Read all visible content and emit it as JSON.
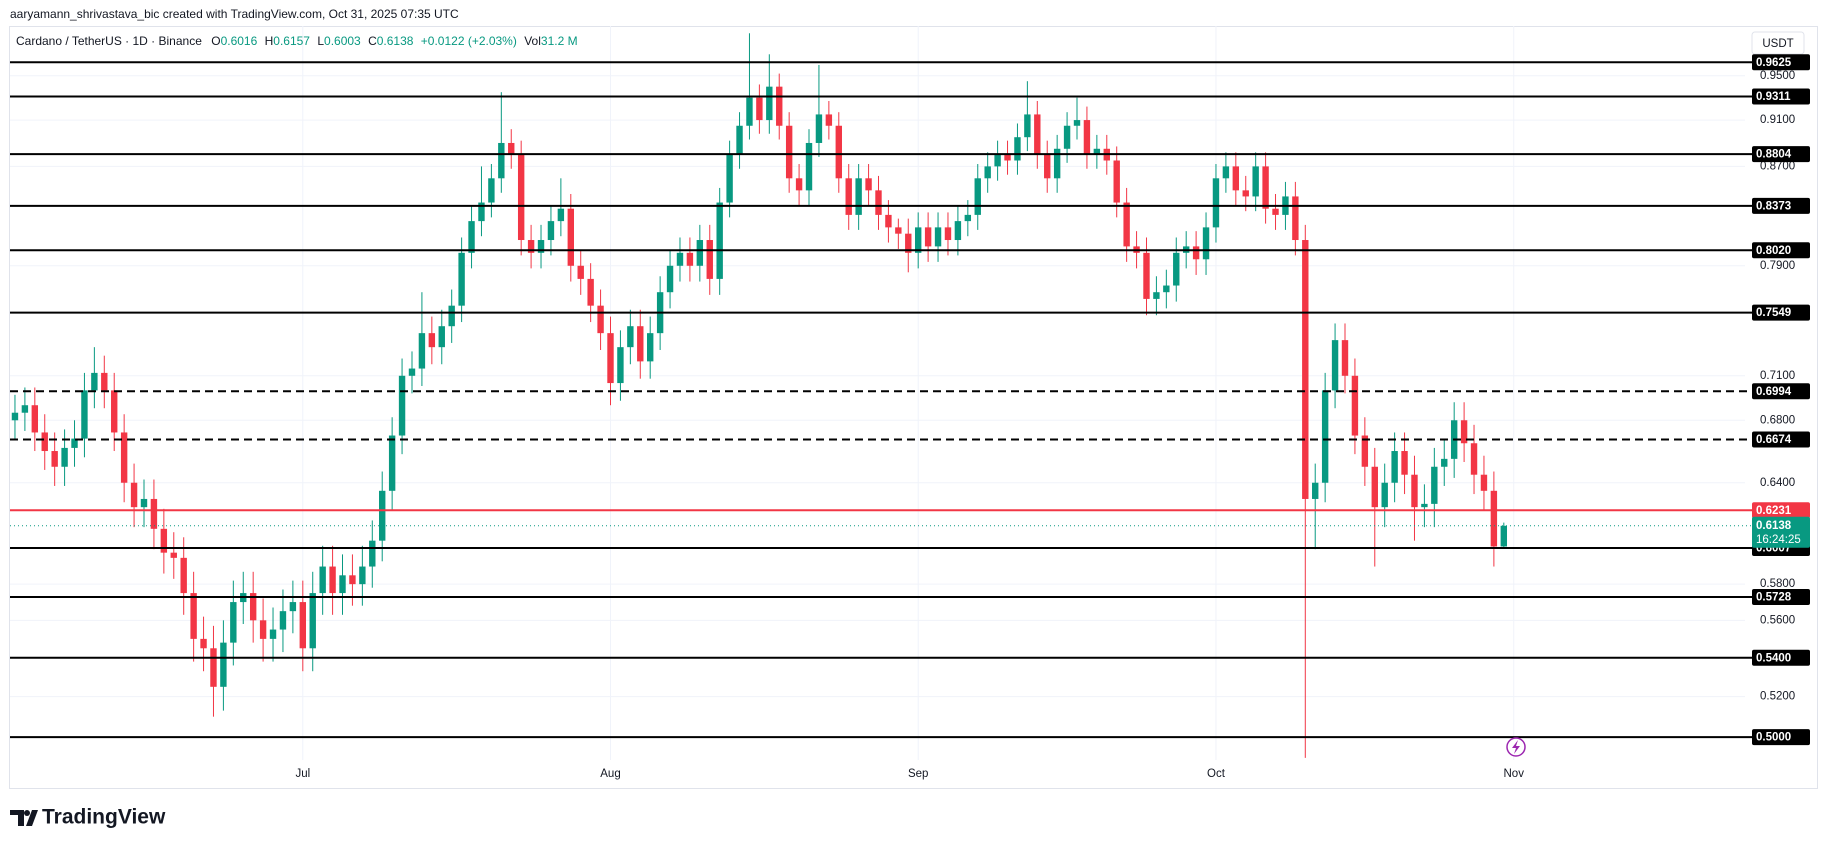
{
  "header": {
    "attribution": "aaryamann_shrivastava_bic created with TradingView.com, Oct 31, 2025 07:35 UTC",
    "symbol": "Cardano / TetherUS · 1D · Binance",
    "open_label": "O",
    "high_label": "H",
    "low_label": "L",
    "close_label": "C",
    "change": "+0.0122 (+2.03%)",
    "volume_label": "Vol",
    "volume": "31.2 M"
  },
  "currency": "USDT",
  "countdown": "16:24:25",
  "brand": "TradingView",
  "chart_data": {
    "type": "candlestick",
    "up_color": "#089981",
    "down_color": "#f23645",
    "log_scale": true,
    "grid": true,
    "ylim": [
      0.489,
      0.997
    ],
    "yticks": [
      {
        "value": 0.95,
        "label": "0.9500"
      },
      {
        "value": 0.91,
        "label": "0.9100"
      },
      {
        "value": 0.87,
        "label": "0.8700"
      },
      {
        "value": 0.79,
        "label": "0.7900"
      },
      {
        "value": 0.71,
        "label": "0.7100"
      },
      {
        "value": 0.68,
        "label": "0.6800"
      },
      {
        "value": 0.64,
        "label": "0.6400"
      },
      {
        "value": 0.58,
        "label": "0.5800"
      },
      {
        "value": 0.56,
        "label": "0.5600"
      },
      {
        "value": 0.52,
        "label": "0.5200"
      }
    ],
    "xlim": [
      -0.5,
      174.3
    ],
    "xticks": [
      {
        "value": 29,
        "label": "Jul"
      },
      {
        "value": 60,
        "label": "Aug"
      },
      {
        "value": 91,
        "label": "Sep"
      },
      {
        "value": 121,
        "label": "Oct"
      },
      {
        "value": 151,
        "label": "Nov"
      }
    ],
    "levels": [
      {
        "value": 0.9625,
        "label": "0.9625",
        "style": "solid",
        "color": "#000000"
      },
      {
        "value": 0.9311,
        "label": "0.9311",
        "style": "solid",
        "color": "#000000"
      },
      {
        "value": 0.8804,
        "label": "0.8804",
        "style": "solid",
        "color": "#000000"
      },
      {
        "value": 0.8373,
        "label": "0.8373",
        "style": "solid",
        "color": "#000000"
      },
      {
        "value": 0.802,
        "label": "0.8020",
        "style": "solid",
        "color": "#000000"
      },
      {
        "value": 0.7549,
        "label": "0.7549",
        "style": "solid",
        "color": "#000000"
      },
      {
        "value": 0.6994,
        "label": "0.6994",
        "style": "dashed",
        "color": "#000000"
      },
      {
        "value": 0.6674,
        "label": "0.6674",
        "style": "dashed",
        "color": "#000000"
      },
      {
        "value": 0.6231,
        "label": "0.6231",
        "style": "solid",
        "color": "#f23645"
      },
      {
        "value": 0.6007,
        "label": "0.6007",
        "style": "solid",
        "color": "#000000"
      },
      {
        "value": 0.5728,
        "label": "0.5728",
        "style": "solid",
        "color": "#000000"
      },
      {
        "value": 0.54,
        "label": "0.5400",
        "style": "solid",
        "color": "#000000"
      },
      {
        "value": 0.5,
        "label": "0.5000",
        "style": "solid",
        "color": "#000000"
      }
    ],
    "open": [
      0.68,
      0.685,
      0.69,
      0.672,
      0.66,
      0.65,
      0.662,
      0.668,
      0.7,
      0.712,
      0.7,
      0.672,
      0.64,
      0.625,
      0.63,
      0.612,
      0.598,
      0.595,
      0.575,
      0.55,
      0.545,
      0.525,
      0.548,
      0.57,
      0.575,
      0.56,
      0.55,
      0.555,
      0.565,
      0.57,
      0.545,
      0.575,
      0.59,
      0.575,
      0.585,
      0.58,
      0.59,
      0.605,
      0.635,
      0.67,
      0.71,
      0.715,
      0.74,
      0.73,
      0.745,
      0.76,
      0.8,
      0.825,
      0.84,
      0.86,
      0.89,
      0.88,
      0.81,
      0.8,
      0.81,
      0.825,
      0.835,
      0.79,
      0.78,
      0.76,
      0.74,
      0.705,
      0.73,
      0.745,
      0.72,
      0.74,
      0.77,
      0.79,
      0.8,
      0.79,
      0.81,
      0.78,
      0.84,
      0.88,
      0.905,
      0.93,
      0.91,
      0.94,
      0.905,
      0.86,
      0.85,
      0.89,
      0.915,
      0.905,
      0.86,
      0.83,
      0.86,
      0.85,
      0.83,
      0.82,
      0.815,
      0.8,
      0.82,
      0.805,
      0.82,
      0.81,
      0.825,
      0.83,
      0.86,
      0.87,
      0.88,
      0.875,
      0.895,
      0.915,
      0.88,
      0.86,
      0.885,
      0.905,
      0.91,
      0.88,
      0.885,
      0.875,
      0.84,
      0.805,
      0.8,
      0.765,
      0.77,
      0.775,
      0.8,
      0.805,
      0.795,
      0.82,
      0.86,
      0.87,
      0.85,
      0.845,
      0.87,
      0.835,
      0.83,
      0.845,
      0.81,
      0.63,
      0.64,
      0.7,
      0.735,
      0.71,
      0.67,
      0.65,
      0.625,
      0.64,
      0.66,
      0.645,
      0.625,
      0.627,
      0.65,
      0.655,
      0.68,
      0.665,
      0.645,
      0.635,
      0.6016
    ],
    "high": [
      0.697,
      0.702,
      0.702,
      0.684,
      0.672,
      0.674,
      0.68,
      0.712,
      0.73,
      0.724,
      0.712,
      0.684,
      0.652,
      0.642,
      0.642,
      0.624,
      0.61,
      0.607,
      0.587,
      0.562,
      0.557,
      0.56,
      0.582,
      0.587,
      0.587,
      0.572,
      0.567,
      0.577,
      0.582,
      0.582,
      0.587,
      0.602,
      0.602,
      0.597,
      0.597,
      0.602,
      0.617,
      0.647,
      0.682,
      0.722,
      0.727,
      0.77,
      0.752,
      0.757,
      0.772,
      0.812,
      0.837,
      0.87,
      0.872,
      0.935,
      0.902,
      0.892,
      0.822,
      0.822,
      0.837,
      0.86,
      0.847,
      0.802,
      0.792,
      0.772,
      0.752,
      0.742,
      0.757,
      0.757,
      0.752,
      0.782,
      0.802,
      0.812,
      0.812,
      0.822,
      0.822,
      0.852,
      0.892,
      0.917,
      0.99,
      0.942,
      0.97,
      0.952,
      0.917,
      0.872,
      0.902,
      0.96,
      0.927,
      0.917,
      0.872,
      0.872,
      0.872,
      0.862,
      0.842,
      0.827,
      0.827,
      0.832,
      0.832,
      0.832,
      0.832,
      0.837,
      0.842,
      0.872,
      0.882,
      0.892,
      0.892,
      0.907,
      0.945,
      0.927,
      0.892,
      0.897,
      0.917,
      0.93,
      0.922,
      0.897,
      0.897,
      0.887,
      0.852,
      0.817,
      0.812,
      0.782,
      0.787,
      0.812,
      0.817,
      0.817,
      0.832,
      0.872,
      0.882,
      0.882,
      0.862,
      0.882,
      0.882,
      0.847,
      0.857,
      0.857,
      0.822,
      0.652,
      0.712,
      0.747,
      0.747,
      0.722,
      0.682,
      0.662,
      0.652,
      0.672,
      0.672,
      0.657,
      0.639,
      0.662,
      0.667,
      0.692,
      0.692,
      0.677,
      0.657,
      0.647,
      0.6157
    ],
    "low": [
      0.668,
      0.673,
      0.66,
      0.648,
      0.638,
      0.638,
      0.65,
      0.656,
      0.688,
      0.688,
      0.66,
      0.628,
      0.613,
      0.613,
      0.6,
      0.586,
      0.583,
      0.563,
      0.538,
      0.533,
      0.51,
      0.513,
      0.536,
      0.558,
      0.548,
      0.538,
      0.538,
      0.543,
      0.553,
      0.533,
      0.533,
      0.563,
      0.563,
      0.563,
      0.568,
      0.568,
      0.578,
      0.593,
      0.623,
      0.658,
      0.698,
      0.703,
      0.718,
      0.718,
      0.733,
      0.748,
      0.788,
      0.813,
      0.828,
      0.848,
      0.868,
      0.798,
      0.788,
      0.788,
      0.798,
      0.813,
      0.778,
      0.768,
      0.748,
      0.728,
      0.69,
      0.693,
      0.718,
      0.708,
      0.708,
      0.728,
      0.758,
      0.778,
      0.778,
      0.778,
      0.768,
      0.768,
      0.828,
      0.868,
      0.893,
      0.898,
      0.898,
      0.893,
      0.848,
      0.838,
      0.838,
      0.878,
      0.893,
      0.848,
      0.818,
      0.818,
      0.838,
      0.818,
      0.808,
      0.803,
      0.785,
      0.788,
      0.793,
      0.793,
      0.798,
      0.798,
      0.813,
      0.818,
      0.848,
      0.858,
      0.863,
      0.863,
      0.883,
      0.868,
      0.848,
      0.848,
      0.873,
      0.893,
      0.868,
      0.868,
      0.863,
      0.828,
      0.793,
      0.788,
      0.753,
      0.753,
      0.758,
      0.763,
      0.788,
      0.783,
      0.783,
      0.808,
      0.848,
      0.838,
      0.833,
      0.833,
      0.823,
      0.818,
      0.818,
      0.798,
      0.49,
      0.6,
      0.628,
      0.688,
      0.698,
      0.658,
      0.638,
      0.59,
      0.613,
      0.628,
      0.633,
      0.605,
      0.613,
      0.613,
      0.638,
      0.643,
      0.653,
      0.633,
      0.623,
      0.59,
      0.6003
    ],
    "close": [
      0.685,
      0.69,
      0.672,
      0.66,
      0.65,
      0.662,
      0.668,
      0.7,
      0.712,
      0.7,
      0.672,
      0.64,
      0.625,
      0.63,
      0.612,
      0.598,
      0.595,
      0.575,
      0.55,
      0.545,
      0.525,
      0.548,
      0.57,
      0.575,
      0.56,
      0.55,
      0.555,
      0.565,
      0.57,
      0.545,
      0.575,
      0.59,
      0.575,
      0.585,
      0.58,
      0.59,
      0.605,
      0.635,
      0.67,
      0.71,
      0.715,
      0.74,
      0.73,
      0.745,
      0.76,
      0.8,
      0.825,
      0.84,
      0.86,
      0.89,
      0.88,
      0.81,
      0.8,
      0.81,
      0.825,
      0.835,
      0.79,
      0.78,
      0.76,
      0.74,
      0.705,
      0.73,
      0.745,
      0.72,
      0.74,
      0.77,
      0.79,
      0.8,
      0.79,
      0.81,
      0.78,
      0.84,
      0.88,
      0.905,
      0.93,
      0.91,
      0.94,
      0.905,
      0.86,
      0.85,
      0.89,
      0.915,
      0.905,
      0.86,
      0.83,
      0.86,
      0.85,
      0.83,
      0.82,
      0.815,
      0.8,
      0.82,
      0.805,
      0.82,
      0.81,
      0.825,
      0.83,
      0.86,
      0.87,
      0.88,
      0.875,
      0.895,
      0.915,
      0.88,
      0.86,
      0.885,
      0.905,
      0.91,
      0.88,
      0.885,
      0.875,
      0.84,
      0.805,
      0.8,
      0.765,
      0.77,
      0.775,
      0.8,
      0.805,
      0.795,
      0.82,
      0.86,
      0.87,
      0.85,
      0.845,
      0.87,
      0.835,
      0.83,
      0.845,
      0.81,
      0.63,
      0.64,
      0.7,
      0.735,
      0.71,
      0.67,
      0.65,
      0.625,
      0.64,
      0.66,
      0.645,
      0.625,
      0.627,
      0.65,
      0.655,
      0.68,
      0.665,
      0.645,
      0.635,
      0.6016,
      0.6138
    ]
  }
}
